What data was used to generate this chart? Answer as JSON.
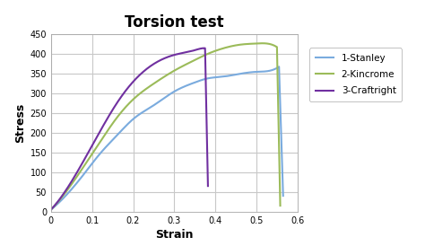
{
  "title": "Torsion test",
  "xlabel": "Strain",
  "ylabel": "Stress",
  "xlim": [
    0,
    0.6
  ],
  "ylim": [
    0,
    450
  ],
  "xticks": [
    0,
    0.1,
    0.2,
    0.3,
    0.4,
    0.5,
    0.6
  ],
  "yticks": [
    0,
    50,
    100,
    150,
    200,
    250,
    300,
    350,
    400,
    450
  ],
  "plot_bg_color": "#ffffff",
  "fig_bg_color": "#ffffff",
  "grid_color": "#c8c8c8",
  "series": [
    {
      "label": "1-Stanley",
      "color": "#7aabde",
      "x": [
        0,
        0.04,
        0.08,
        0.12,
        0.16,
        0.2,
        0.25,
        0.3,
        0.35,
        0.38,
        0.42,
        0.46,
        0.5,
        0.54,
        0.555,
        0.565
      ],
      "y": [
        5,
        45,
        95,
        148,
        193,
        235,
        270,
        305,
        328,
        338,
        343,
        350,
        355,
        360,
        368,
        40
      ]
    },
    {
      "label": "2-Kincrome",
      "color": "#9bbb59",
      "x": [
        0,
        0.04,
        0.08,
        0.12,
        0.16,
        0.2,
        0.25,
        0.3,
        0.35,
        0.38,
        0.42,
        0.46,
        0.5,
        0.535,
        0.55,
        0.558
      ],
      "y": [
        5,
        55,
        115,
        178,
        238,
        285,
        325,
        358,
        385,
        400,
        415,
        424,
        427,
        425,
        418,
        15
      ]
    },
    {
      "label": "3-Craftright",
      "color": "#7030a0",
      "x": [
        0,
        0.04,
        0.08,
        0.12,
        0.16,
        0.2,
        0.25,
        0.3,
        0.35,
        0.37,
        0.375,
        0.382
      ],
      "y": [
        5,
        60,
        130,
        205,
        275,
        330,
        375,
        398,
        410,
        415,
        415,
        65
      ]
    }
  ]
}
